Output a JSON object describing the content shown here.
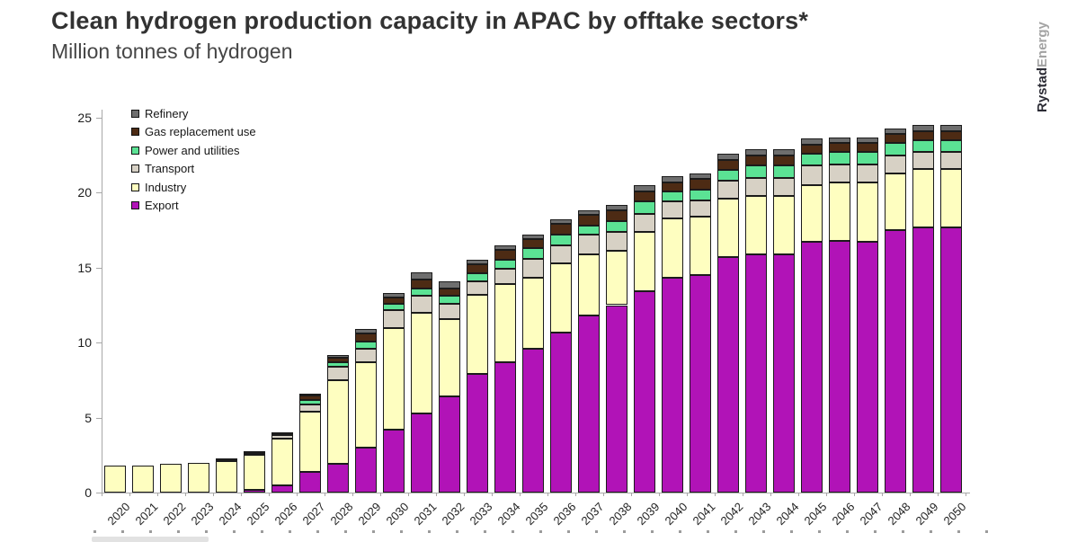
{
  "header": {
    "title": "Clean hydrogen production capacity in APAC by offtake sectors*",
    "subtitle": "Million tonnes of hydrogen"
  },
  "branding": {
    "brand_primary": "Rystad",
    "brand_secondary": "Energy"
  },
  "chart_data": {
    "type": "bar",
    "stacked": true,
    "title": "Clean hydrogen production capacity in APAC by offtake sectors*",
    "units_label": "Million tonnes of hydrogen",
    "xlabel": "",
    "ylabel": "",
    "ylim": [
      0,
      25
    ],
    "yticks": [
      0,
      5,
      10,
      15,
      20,
      25
    ],
    "grid": false,
    "legend_position": "top-left inside plot",
    "legend_order_top_to_bottom": [
      "Refinery",
      "Gas replacement use",
      "Power and utilities",
      "Transport",
      "Industry",
      "Export"
    ],
    "categories": [
      "2020",
      "2021",
      "2022",
      "2023",
      "2024",
      "2025",
      "2026",
      "2027",
      "2028",
      "2029",
      "2030",
      "2031",
      "2032",
      "2033",
      "2034",
      "2035",
      "2036",
      "2037",
      "2038",
      "2039",
      "2040",
      "2041",
      "2042",
      "2043",
      "2044",
      "2045",
      "2046",
      "2047",
      "2048",
      "2049",
      "2050"
    ],
    "series": [
      {
        "name": "Export",
        "color": "#B113B7",
        "values": [
          0,
          0,
          0,
          0,
          0,
          0.2,
          0.5,
          1.4,
          1.9,
          3.0,
          4.2,
          5.3,
          6.4,
          7.9,
          8.7,
          9.6,
          10.7,
          11.8,
          12.5,
          13.4,
          14.3,
          14.5,
          15.7,
          15.9,
          15.9,
          16.7,
          16.8,
          16.7,
          17.5,
          17.7,
          17.7
        ]
      },
      {
        "name": "Industry",
        "color": "#FEFEC0",
        "values": [
          1.8,
          1.8,
          1.9,
          2.0,
          2.1,
          2.3,
          3.1,
          4.0,
          5.6,
          5.7,
          6.8,
          6.7,
          5.2,
          5.3,
          5.2,
          4.7,
          4.6,
          4.1,
          3.6,
          4.0,
          4.0,
          3.9,
          3.9,
          3.9,
          3.9,
          3.8,
          3.9,
          4.0,
          3.8,
          3.9,
          3.9
        ]
      },
      {
        "name": "Transport",
        "color": "#D7D1C5",
        "values": [
          0,
          0,
          0,
          0,
          0,
          0.15,
          0.25,
          0.5,
          0.9,
          0.9,
          1.2,
          1.1,
          1.0,
          0.9,
          1.0,
          1.3,
          1.2,
          1.3,
          1.3,
          1.2,
          1.1,
          1.1,
          1.2,
          1.2,
          1.2,
          1.3,
          1.2,
          1.2,
          1.2,
          1.1,
          1.1
        ]
      },
      {
        "name": "Power and utilities",
        "color": "#5BE294",
        "values": [
          0,
          0,
          0,
          0,
          0,
          0,
          0,
          0.3,
          0.3,
          0.5,
          0.4,
          0.5,
          0.5,
          0.5,
          0.6,
          0.7,
          0.7,
          0.6,
          0.7,
          0.8,
          0.7,
          0.7,
          0.7,
          0.8,
          0.8,
          0.8,
          0.8,
          0.8,
          0.8,
          0.8,
          0.8
        ]
      },
      {
        "name": "Gas replacement use",
        "color": "#4D2B14",
        "values": [
          0,
          0,
          0,
          0,
          0.15,
          0.1,
          0.1,
          0.25,
          0.3,
          0.5,
          0.4,
          0.6,
          0.5,
          0.6,
          0.7,
          0.6,
          0.7,
          0.7,
          0.7,
          0.7,
          0.6,
          0.7,
          0.7,
          0.7,
          0.7,
          0.6,
          0.6,
          0.6,
          0.6,
          0.6,
          0.6
        ]
      },
      {
        "name": "Refinery",
        "color": "#6E6E6E",
        "values": [
          0,
          0,
          0,
          0,
          0.05,
          0,
          0.05,
          0.15,
          0.2,
          0.3,
          0.3,
          0.5,
          0.5,
          0.3,
          0.3,
          0.3,
          0.3,
          0.3,
          0.4,
          0.4,
          0.4,
          0.4,
          0.4,
          0.4,
          0.4,
          0.4,
          0.4,
          0.4,
          0.4,
          0.4,
          0.4
        ]
      }
    ]
  }
}
